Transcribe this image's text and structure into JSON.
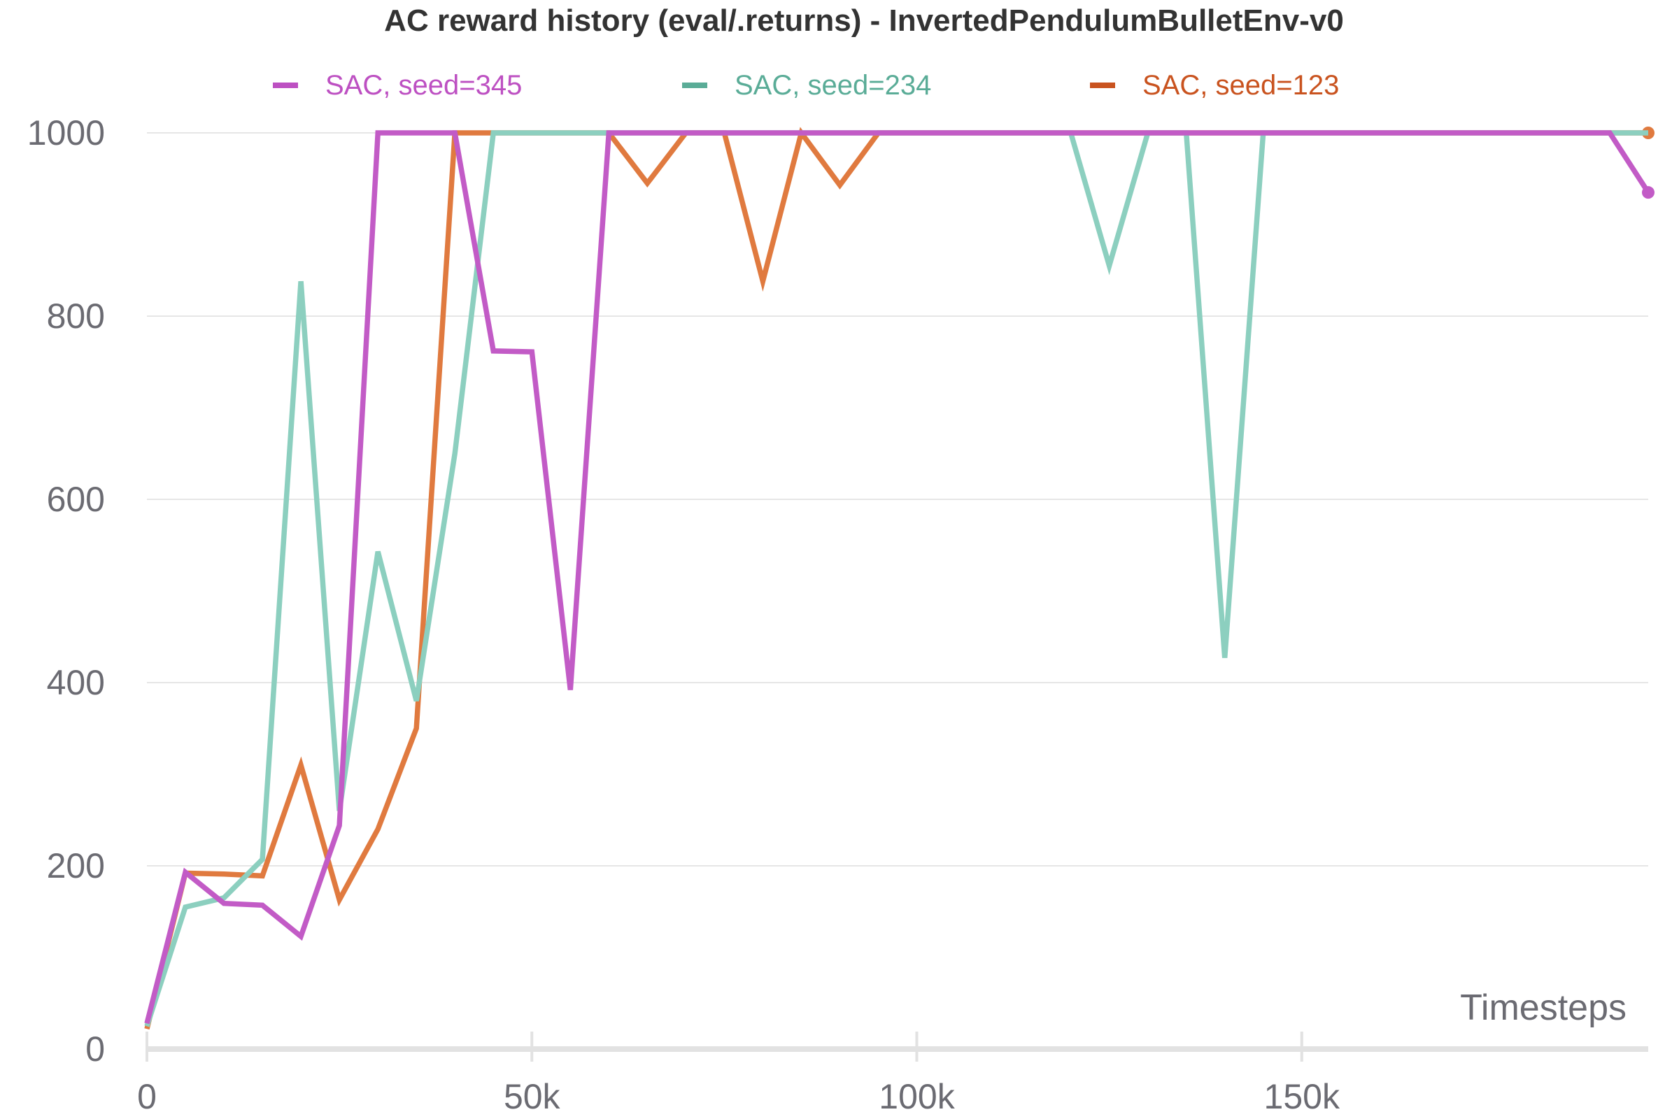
{
  "chart_data": {
    "type": "line",
    "title": "AC reward history (eval/.returns) - InvertedPendulumBulletEnv-v0",
    "xlabel": "Timesteps",
    "ylabel": "",
    "xlim": [
      0,
      195000
    ],
    "ylim": [
      0,
      1000
    ],
    "x_ticks": [
      0,
      50000,
      100000,
      150000
    ],
    "x_tick_labels": [
      "0",
      "50k",
      "100k",
      "150k"
    ],
    "y_ticks": [
      0,
      200,
      400,
      600,
      800,
      1000
    ],
    "y_tick_labels": [
      "0",
      "200",
      "400",
      "600",
      "800",
      "1000"
    ],
    "grid": true,
    "legend_position": "top",
    "series": [
      {
        "name": "SAC, seed=123",
        "color": "#e07a3f",
        "legend_color": "#c9531f",
        "end_marker": true,
        "points": [
          [
            0,
            22
          ],
          [
            5000,
            192
          ],
          [
            10000,
            191
          ],
          [
            15000,
            189
          ],
          [
            20000,
            310
          ],
          [
            25000,
            163
          ],
          [
            30000,
            240
          ],
          [
            35000,
            350
          ],
          [
            40000,
            1000
          ],
          [
            45000,
            1000
          ],
          [
            50000,
            1000
          ],
          [
            55000,
            1000
          ],
          [
            60000,
            1000
          ],
          [
            65000,
            945
          ],
          [
            70000,
            1000
          ],
          [
            75000,
            1000
          ],
          [
            80000,
            838
          ],
          [
            85000,
            1000
          ],
          [
            90000,
            943
          ],
          [
            95000,
            1000
          ],
          [
            100000,
            1000
          ],
          [
            110000,
            1000
          ],
          [
            120000,
            1000
          ],
          [
            130000,
            1000
          ],
          [
            140000,
            1000
          ],
          [
            150000,
            1000
          ],
          [
            160000,
            1000
          ],
          [
            170000,
            1000
          ],
          [
            180000,
            1000
          ],
          [
            190000,
            1000
          ],
          [
            195000,
            1000
          ]
        ]
      },
      {
        "name": "SAC, seed=234",
        "color": "#8ccfbf",
        "legend_color": "#5aac97",
        "end_marker": false,
        "points": [
          [
            0,
            25
          ],
          [
            5000,
            155
          ],
          [
            10000,
            165
          ],
          [
            15000,
            207
          ],
          [
            20000,
            838
          ],
          [
            25000,
            260
          ],
          [
            30000,
            543
          ],
          [
            35000,
            380
          ],
          [
            40000,
            650
          ],
          [
            45000,
            1000
          ],
          [
            50000,
            1000
          ],
          [
            55000,
            1000
          ],
          [
            60000,
            1000
          ],
          [
            70000,
            1000
          ],
          [
            80000,
            1000
          ],
          [
            90000,
            1000
          ],
          [
            100000,
            1000
          ],
          [
            110000,
            1000
          ],
          [
            120000,
            1000
          ],
          [
            125000,
            855
          ],
          [
            130000,
            1000
          ],
          [
            135000,
            1000
          ],
          [
            140000,
            427
          ],
          [
            145000,
            1000
          ],
          [
            150000,
            1000
          ],
          [
            160000,
            1000
          ],
          [
            170000,
            1000
          ],
          [
            180000,
            1000
          ],
          [
            190000,
            1000
          ],
          [
            195000,
            1000
          ]
        ]
      },
      {
        "name": "SAC, seed=345",
        "color": "#c25bc6",
        "legend_color": "#bd50c2",
        "end_marker": true,
        "points": [
          [
            0,
            28
          ],
          [
            5000,
            193
          ],
          [
            10000,
            159
          ],
          [
            15000,
            157
          ],
          [
            20000,
            123
          ],
          [
            25000,
            244
          ],
          [
            30000,
            1000
          ],
          [
            35000,
            1000
          ],
          [
            40000,
            1000
          ],
          [
            45000,
            762
          ],
          [
            50000,
            761
          ],
          [
            55000,
            392
          ],
          [
            60000,
            1000
          ],
          [
            70000,
            1000
          ],
          [
            80000,
            1000
          ],
          [
            90000,
            1000
          ],
          [
            100000,
            1000
          ],
          [
            110000,
            1000
          ],
          [
            120000,
            1000
          ],
          [
            130000,
            1000
          ],
          [
            140000,
            1000
          ],
          [
            150000,
            1000
          ],
          [
            160000,
            1000
          ],
          [
            170000,
            1000
          ],
          [
            180000,
            1000
          ],
          [
            190000,
            1000
          ],
          [
            195000,
            935
          ]
        ]
      }
    ]
  }
}
